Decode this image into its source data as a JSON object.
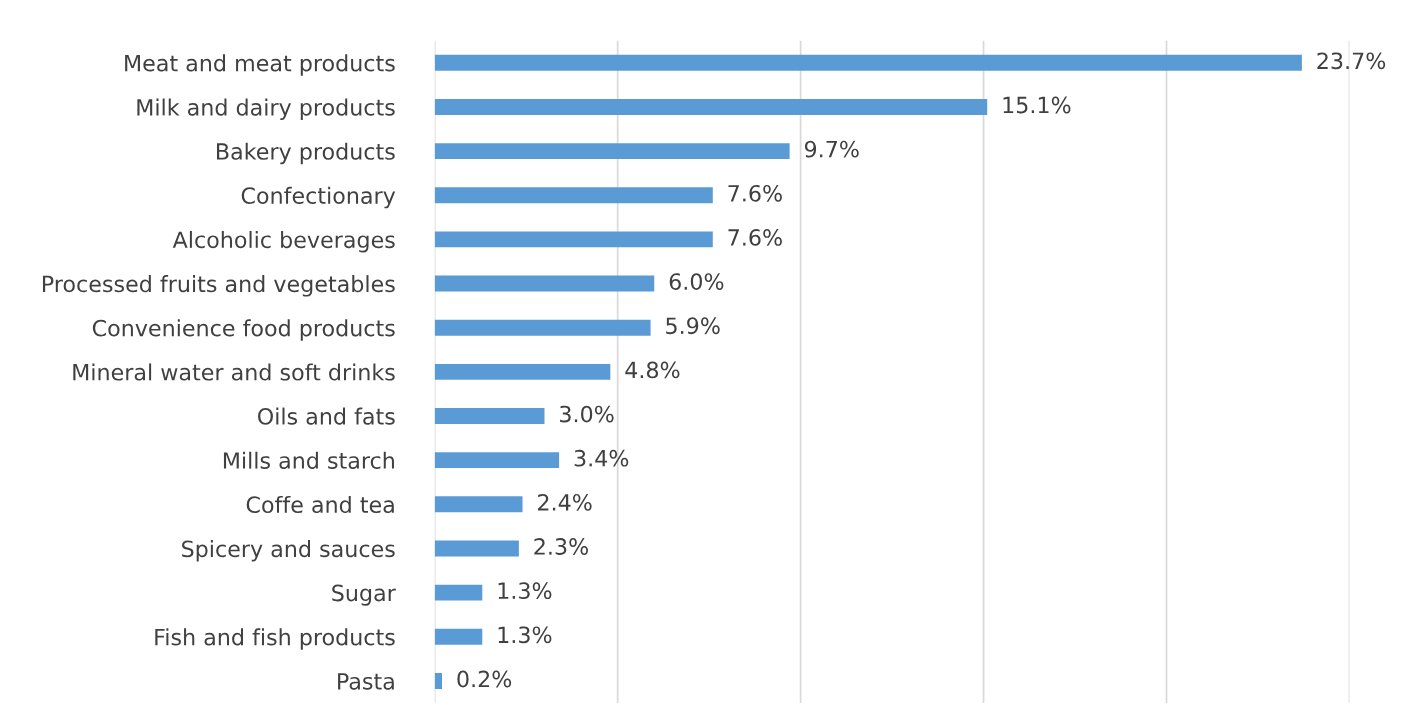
{
  "chart_data": {
    "type": "bar",
    "orientation": "horizontal",
    "categories": [
      "Meat and meat products",
      "Milk and dairy products",
      "Bakery products",
      "Confectionary",
      "Alcoholic beverages",
      "Processed fruits and vegetables",
      "Convenience food products",
      "Mineral water and soft drinks",
      "Oils and fats",
      "Mills and starch",
      "Coffe and tea",
      "Spicery and sauces",
      "Sugar",
      "Fish and fish products",
      "Pasta"
    ],
    "values": [
      23.7,
      15.1,
      9.7,
      7.6,
      7.6,
      6.0,
      5.9,
      4.8,
      3.0,
      3.4,
      2.4,
      2.3,
      1.3,
      1.3,
      0.2
    ],
    "value_labels": [
      "23.7%",
      "15.1%",
      "9.7%",
      "7.6%",
      "7.6%",
      "6.0%",
      "5.9%",
      "4.8%",
      "3.0%",
      "3.4%",
      "2.4%",
      "2.3%",
      "1.3%",
      "1.3%",
      "0.2%"
    ],
    "color": "#5b9bd5",
    "xlim": [
      0,
      25
    ],
    "xticks": [
      {
        "value": 0,
        "label": null
      },
      {
        "value": 5,
        "label": null
      },
      {
        "value": 10,
        "label": null
      },
      {
        "value": 15,
        "label": null
      },
      {
        "value": 20,
        "label": null
      },
      {
        "value": 25,
        "label": null
      }
    ],
    "tick_labels": "y",
    "grid": "x",
    "legend": false
  }
}
